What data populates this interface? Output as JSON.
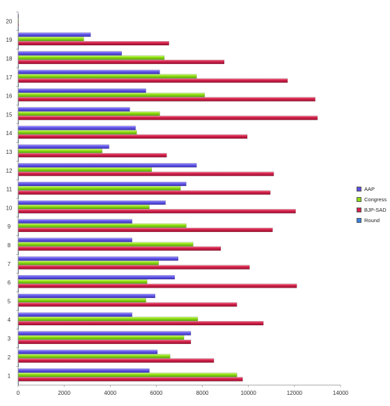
{
  "chart_data": {
    "type": "bar",
    "orientation": "horizontal",
    "categories": [
      "1",
      "2",
      "3",
      "4",
      "5",
      "6",
      "7",
      "8",
      "9",
      "10",
      "11",
      "12",
      "13",
      "14",
      "15",
      "16",
      "17",
      "18",
      "19",
      "20"
    ],
    "series": [
      {
        "name": "AAP",
        "color": "#5b4ee0",
        "values": [
          5700,
          6050,
          7500,
          4950,
          5950,
          6800,
          6950,
          4950,
          4950,
          6400,
          7300,
          7750,
          3950,
          5100,
          4850,
          5550,
          6150,
          4500,
          3150,
          0
        ]
      },
      {
        "name": "Congress",
        "color": "#8ddc14",
        "values": [
          9500,
          6600,
          7200,
          7800,
          5550,
          5600,
          6100,
          7600,
          7300,
          5700,
          7050,
          5800,
          3650,
          5150,
          6150,
          8100,
          7750,
          6350,
          2850,
          0
        ]
      },
      {
        "name": "BJP-SAD",
        "color": "#d6224b",
        "values": [
          9750,
          8500,
          7500,
          10650,
          9500,
          12100,
          10050,
          8800,
          11050,
          12050,
          10950,
          11100,
          6450,
          9950,
          13000,
          12900,
          11700,
          8950,
          6550,
          0
        ]
      },
      {
        "name": "Round",
        "color": "#3c7fe0",
        "values": [
          1,
          2,
          3,
          4,
          5,
          6,
          7,
          8,
          9,
          10,
          11,
          12,
          13,
          14,
          15,
          16,
          17,
          18,
          19,
          20
        ]
      }
    ],
    "xlim": [
      0,
      14000
    ],
    "xticks": [
      0,
      2000,
      4000,
      6000,
      8000,
      10000,
      12000,
      14000
    ],
    "legend_position": "right",
    "grid": false
  }
}
